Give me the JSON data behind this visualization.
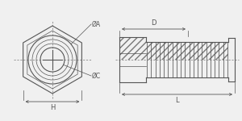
{
  "bg_color": "#f0f0f0",
  "line_color": "#555555",
  "dim_color": "#555555",
  "hatch_color": "#777777",
  "annotation_color": "#555555",
  "figsize": [
    3.0,
    1.5
  ],
  "dpi": 100,
  "labels": {
    "phiA": "ØA",
    "phiC": "ØC",
    "H": "H",
    "D": "D",
    "L": "L"
  }
}
